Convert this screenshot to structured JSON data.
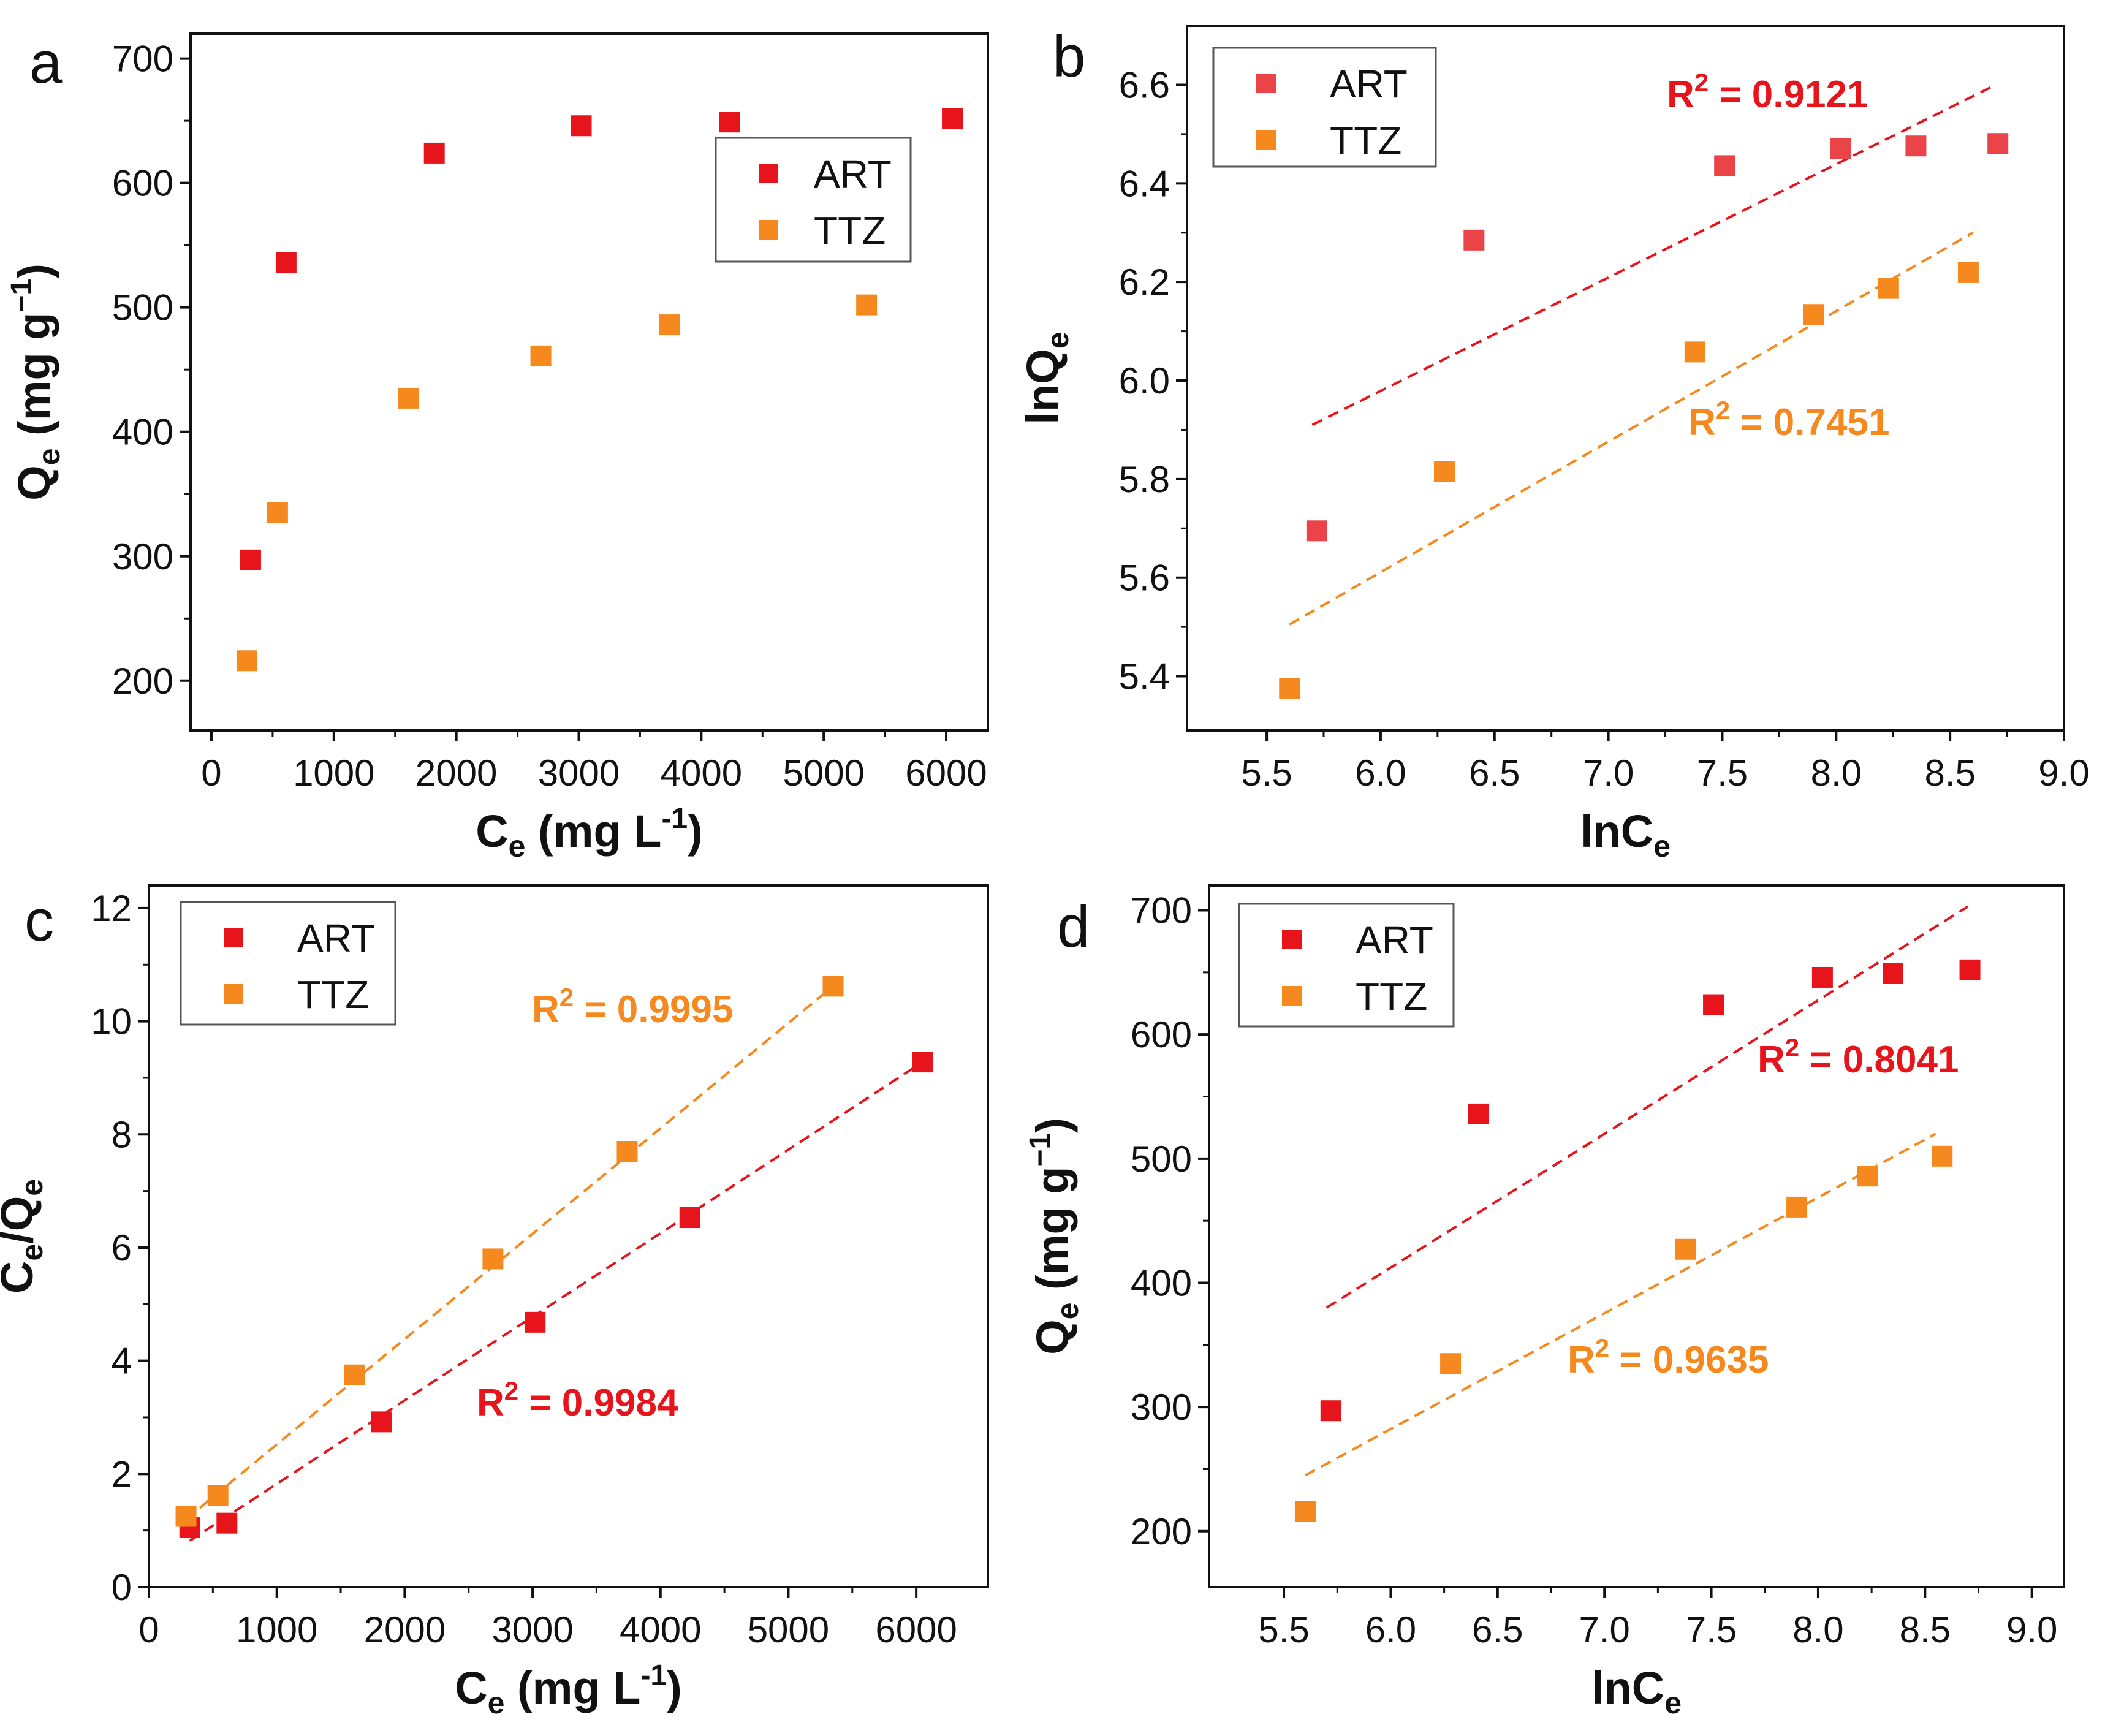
{
  "colors": {
    "ART": "#e8141c",
    "TTZ": "#f5891e",
    "ART_light": "#ea4448",
    "axis": "#111111"
  },
  "chart_data": [
    {
      "type": "scatter",
      "panel": "a",
      "xlabel": "C",
      "xlabel_sub": "e",
      "xlabel_unit_pre": " (mg L",
      "xlabel_unit_sup": "-1",
      "xlabel_unit_post": ")",
      "ylabel": "Q",
      "ylabel_sub": "e",
      "ylabel_unit_pre": " (mg g",
      "ylabel_unit_sup": "−1",
      "ylabel_unit_post": ")",
      "xlim": [
        -170,
        6340
      ],
      "ylim": [
        160,
        720
      ],
      "xticks": [
        "0",
        "1000",
        "2000",
        "3000",
        "4000",
        "5000",
        "6000"
      ],
      "xtick_values": [
        0,
        1000,
        2000,
        3000,
        4000,
        5000,
        6000
      ],
      "yticks": [
        "200",
        "300",
        "400",
        "500",
        "600",
        "700"
      ],
      "ytick_values": [
        200,
        300,
        400,
        500,
        600,
        700
      ],
      "legend": [
        "ART",
        "TTZ"
      ],
      "legend_position": "center-right",
      "series": [
        {
          "name": "ART",
          "x": [
            320,
            610,
            1820,
            3020,
            4230,
            6050
          ],
          "y": [
            297,
            536,
            624,
            646,
            649,
            652
          ]
        },
        {
          "name": "TTZ",
          "x": [
            290,
            540,
            1610,
            2690,
            3740,
            5350
          ],
          "y": [
            216,
            335,
            427,
            461,
            486,
            502
          ]
        }
      ],
      "fits": []
    },
    {
      "type": "scatter",
      "panel": "b",
      "xlabel": "lnC",
      "xlabel_sub": "e",
      "ylabel": "lnQ",
      "ylabel_sub": "e",
      "xlim": [
        5.15,
        9.0
      ],
      "ylim": [
        5.29,
        6.72
      ],
      "xticks": [
        "5.5",
        "6.0",
        "6.5",
        "7.0",
        "7.5",
        "8.0",
        "8.5",
        "9.0"
      ],
      "xtick_values": [
        5.5,
        6.0,
        6.5,
        7.0,
        7.5,
        8.0,
        8.5,
        9.0
      ],
      "yticks": [
        "5.4",
        "5.6",
        "5.8",
        "6.0",
        "6.2",
        "6.4",
        "6.6"
      ],
      "ytick_values": [
        5.4,
        5.6,
        5.8,
        6.0,
        6.2,
        6.4,
        6.6
      ],
      "legend": [
        "ART",
        "TTZ"
      ],
      "legend_position": "top-left",
      "series": [
        {
          "name": "ART",
          "x": [
            5.72,
            6.41,
            7.51,
            8.02,
            8.35,
            8.71
          ],
          "y": [
            5.695,
            6.285,
            6.436,
            6.471,
            6.476,
            6.481
          ]
        },
        {
          "name": "TTZ",
          "x": [
            5.6,
            6.28,
            7.38,
            7.9,
            8.23,
            8.58
          ],
          "y": [
            5.375,
            5.815,
            6.058,
            6.134,
            6.187,
            6.219
          ]
        }
      ],
      "fits": [
        {
          "series": "ART",
          "x": [
            5.7,
            8.7
          ],
          "y": [
            5.91,
            6.6
          ],
          "r2_prefix": "R",
          "r2_sup": "2",
          "r2_value": " = 0.9121"
        },
        {
          "series": "TTZ",
          "x": [
            5.6,
            8.6
          ],
          "y": [
            5.505,
            6.3
          ],
          "r2_prefix": "R",
          "r2_sup": "2",
          "r2_value": " = 0.7451"
        }
      ]
    },
    {
      "type": "scatter",
      "panel": "c",
      "xlabel": "C",
      "xlabel_sub": "e",
      "xlabel_unit_pre": " (mg L",
      "xlabel_unit_sup": "-1",
      "xlabel_unit_post": ")",
      "ylabel": "C",
      "ylabel_sub": "e",
      "ylabel_mid": "/Q",
      "ylabel_sub2": "e",
      "xlim": [
        0,
        6560
      ],
      "ylim": [
        0,
        12.4
      ],
      "xticks": [
        "0",
        "1000",
        "2000",
        "3000",
        "4000",
        "5000",
        "6000"
      ],
      "xtick_values": [
        0,
        1000,
        2000,
        3000,
        4000,
        5000,
        6000
      ],
      "yticks": [
        "0",
        "2",
        "4",
        "6",
        "8",
        "10",
        "12"
      ],
      "ytick_values": [
        0,
        2,
        4,
        6,
        8,
        10,
        12
      ],
      "legend": [
        "ART",
        "TTZ"
      ],
      "legend_position": "top-left",
      "series": [
        {
          "name": "ART",
          "x": [
            320,
            610,
            1820,
            3020,
            4230,
            6050
          ],
          "y": [
            1.05,
            1.13,
            2.92,
            4.68,
            6.53,
            9.28
          ]
        },
        {
          "name": "TTZ",
          "x": [
            290,
            540,
            1610,
            2690,
            3740,
            5350
          ],
          "y": [
            1.25,
            1.62,
            3.75,
            5.8,
            7.7,
            10.62
          ]
        }
      ],
      "fits": [
        {
          "series": "ART",
          "x": [
            320,
            6050
          ],
          "y": [
            0.82,
            9.28
          ],
          "r2_prefix": "R",
          "r2_sup": "2",
          "r2_value": " = 0.9984"
        },
        {
          "series": "TTZ",
          "x": [
            290,
            5350
          ],
          "y": [
            1.2,
            10.62
          ],
          "r2_prefix": "R",
          "r2_sup": "2",
          "r2_value": " = 0.9995"
        }
      ]
    },
    {
      "type": "scatter",
      "panel": "d",
      "xlabel": "lnC",
      "xlabel_sub": "e",
      "ylabel": "Q",
      "ylabel_sub": "e",
      "ylabel_unit_pre": " (mg g",
      "ylabel_unit_sup": "−1",
      "ylabel_unit_post": ")",
      "xlim": [
        5.15,
        9.15
      ],
      "ylim": [
        155,
        720
      ],
      "xticks": [
        "5.5",
        "6.0",
        "6.5",
        "7.0",
        "7.5",
        "8.0",
        "8.5",
        "9.0"
      ],
      "xtick_values": [
        5.5,
        6.0,
        6.5,
        7.0,
        7.5,
        8.0,
        8.5,
        9.0
      ],
      "yticks": [
        "200",
        "300",
        "400",
        "500",
        "600",
        "700"
      ],
      "ytick_values": [
        200,
        300,
        400,
        500,
        600,
        700
      ],
      "legend": [
        "ART",
        "TTZ"
      ],
      "legend_position": "top-left",
      "series": [
        {
          "name": "ART",
          "x": [
            5.72,
            6.41,
            7.51,
            8.02,
            8.35,
            8.71
          ],
          "y": [
            297,
            536,
            624,
            646,
            649,
            652
          ]
        },
        {
          "name": "TTZ",
          "x": [
            5.6,
            6.28,
            7.38,
            7.9,
            8.23,
            8.58
          ],
          "y": [
            216,
            335,
            427,
            461,
            486,
            502
          ]
        }
      ],
      "fits": [
        {
          "series": "ART",
          "x": [
            5.7,
            8.7
          ],
          "y": [
            380,
            703
          ],
          "r2_prefix": "R",
          "r2_sup": "2",
          "r2_value": " = 0.8041"
        },
        {
          "series": "TTZ",
          "x": [
            5.6,
            8.55
          ],
          "y": [
            245,
            520
          ],
          "r2_prefix": "R",
          "r2_sup": "2",
          "r2_value": " = 0.9635"
        }
      ]
    }
  ]
}
